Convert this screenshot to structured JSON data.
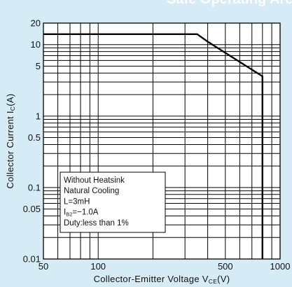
{
  "page_title": "Safe Operating Area",
  "chart_data": {
    "type": "line",
    "title": "",
    "xlabel": "Collector-Emitter Voltage V",
    "xlabel_sub": "CE",
    "xlabel_unit": "(V)",
    "ylabel": "Collector Current I",
    "ylabel_sub": "C",
    "ylabel_unit": "(A)",
    "x_scale": "log",
    "y_scale": "log",
    "xlim": [
      50,
      1000
    ],
    "ylim": [
      0.01,
      20
    ],
    "grid": true,
    "x_ticks": [
      {
        "value": 50,
        "label": "50"
      },
      {
        "value": 100,
        "label": "100"
      },
      {
        "value": 500,
        "label": "500"
      },
      {
        "value": 1000,
        "label": "1000"
      }
    ],
    "y_ticks": [
      {
        "value": 0.01,
        "label": "0.01"
      },
      {
        "value": 0.05,
        "label": "0.05"
      },
      {
        "value": 0.1,
        "label": "0.1"
      },
      {
        "value": 0.5,
        "label": "0.5"
      },
      {
        "value": 1,
        "label": "1"
      },
      {
        "value": 5,
        "label": "5"
      },
      {
        "value": 10,
        "label": "10"
      },
      {
        "value": 20,
        "label": "20"
      }
    ],
    "series": [
      {
        "color": "#000000",
        "points": [
          {
            "x": 50,
            "y": 14
          },
          {
            "x": 350,
            "y": 14
          },
          {
            "x": 400,
            "y": 11
          },
          {
            "x": 800,
            "y": 3.6
          },
          {
            "x": 800,
            "y": 0.01
          }
        ]
      }
    ],
    "annotation": {
      "lines": [
        {
          "text": "Without Heatsink"
        },
        {
          "text": "Natural Cooling"
        },
        {
          "text": "L=3mH"
        },
        {
          "text": "I",
          "sub": "B2",
          "rest": "=−1.0A"
        },
        {
          "text": "Duty:less than 1%"
        }
      ]
    }
  }
}
